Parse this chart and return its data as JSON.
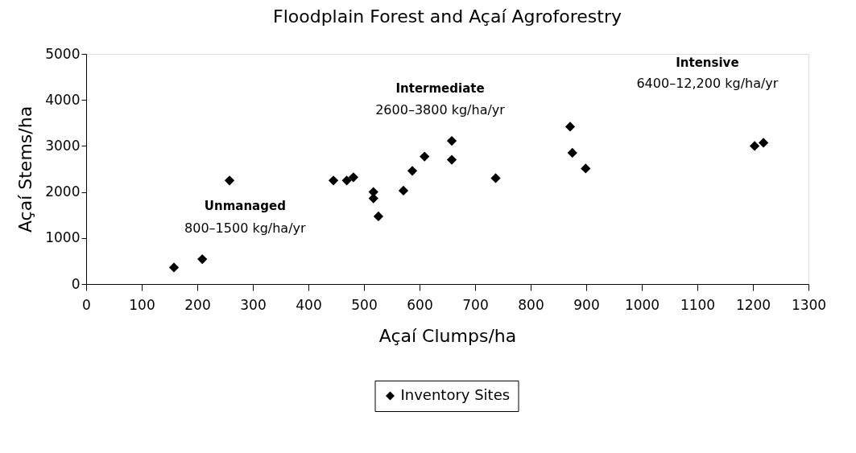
{
  "chart_data": {
    "type": "scatter",
    "title": "Floodplain Forest and Açaí Agroforestry",
    "xlabel": "Açaí Clumps/ha",
    "ylabel": "Açaí Stems/ha",
    "x": [
      158,
      209,
      258,
      445,
      469,
      481,
      517,
      517,
      526,
      571,
      587,
      609,
      658,
      658,
      737,
      871,
      875,
      899,
      1203,
      1219
    ],
    "series": [
      {
        "name": "Inventory Sites",
        "color": "#000000",
        "values": [
          360,
          540,
          2250,
          2250,
          2250,
          2320,
          2000,
          1860,
          1470,
          2030,
          2460,
          2770,
          3110,
          2700,
          2300,
          3420,
          2850,
          2510,
          3000,
          3070
        ]
      }
    ],
    "xlim": [
      0,
      1300
    ],
    "xticks": [
      0,
      100,
      200,
      300,
      400,
      500,
      600,
      700,
      800,
      900,
      1000,
      1100,
      1200,
      1300
    ],
    "ylim": [
      0,
      5000
    ],
    "yticks": [
      0,
      1000,
      2000,
      3000,
      4000,
      5000
    ],
    "annotations": [
      "Unmanaged",
      "800–1500 kg/ha/yr",
      "Intermediate",
      "2600–3800 kg/ha/yr",
      "Intensive",
      "6400–12,200 kg/ha/yr"
    ],
    "marker": "diamond",
    "grid": false,
    "legend": "bottom"
  }
}
